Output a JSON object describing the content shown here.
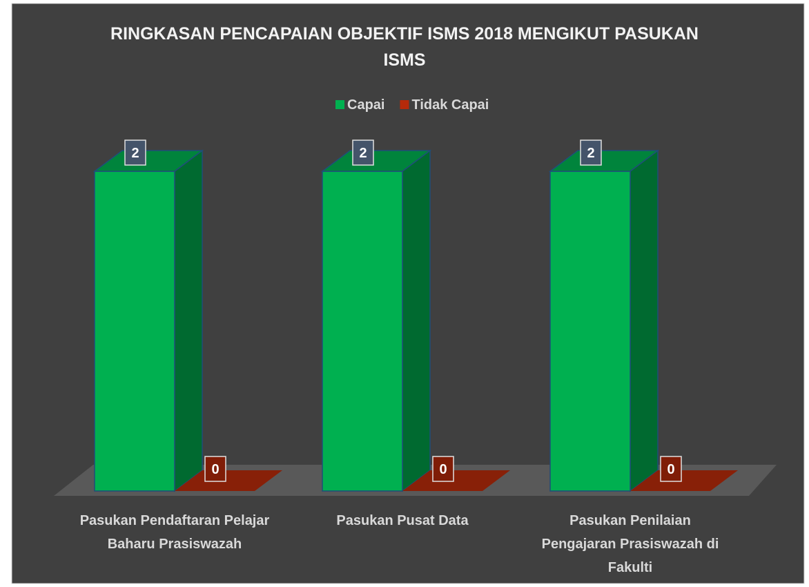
{
  "chart_data": {
    "type": "bar3d",
    "title": "RINGKASAN PENCAPAIAN OBJEKTIF ISMS 2018 MENGIKUT PASUKAN ISMS",
    "categories": [
      "Pasukan Pendaftaran Pelajar Baharu Prasiswazah",
      "Pasukan Pusat Data",
      "Pasukan Penilaian Pengajaran Prasiswazah di Fakulti"
    ],
    "series": [
      {
        "name": "Capai",
        "color": "#00b050",
        "values": [
          2,
          2,
          2
        ]
      },
      {
        "name": "Tidak Capai",
        "color": "#b52a0a",
        "values": [
          0,
          0,
          0
        ]
      }
    ],
    "legend": "top"
  }
}
